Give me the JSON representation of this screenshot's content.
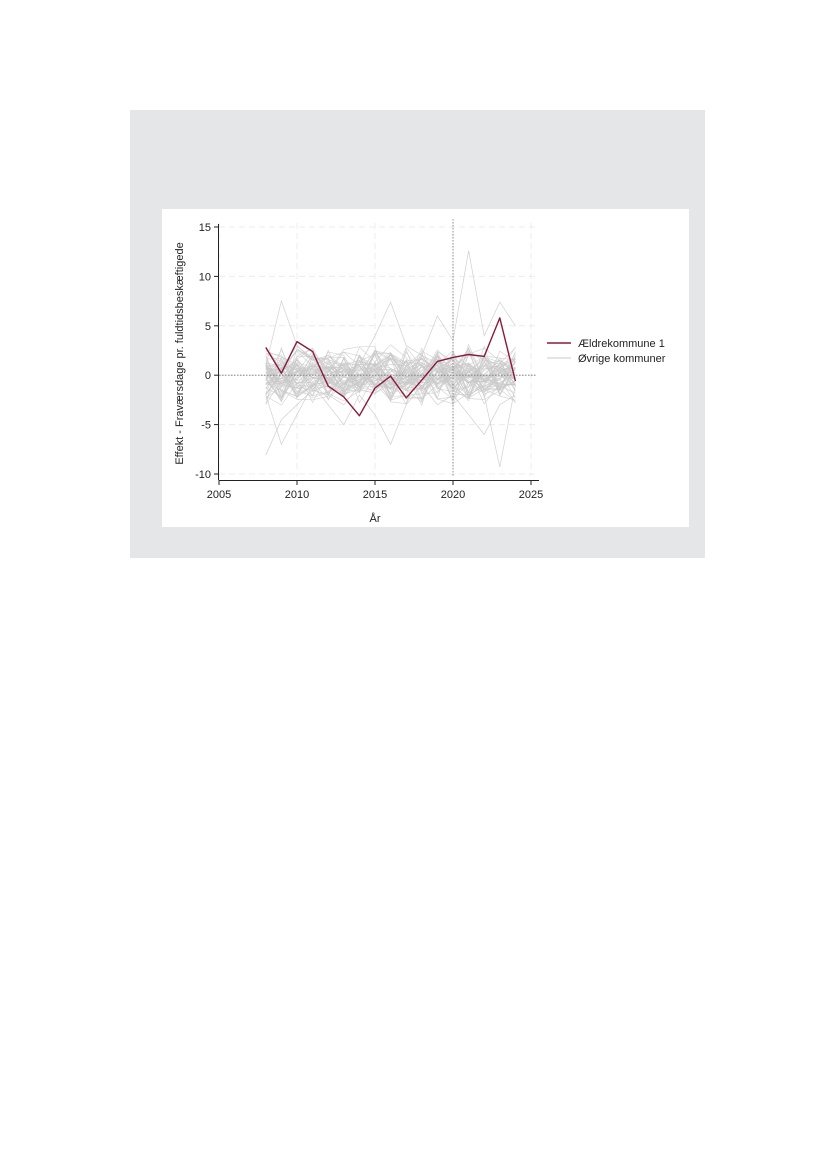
{
  "chart_data": {
    "type": "line",
    "title": "",
    "xlabel": "År",
    "ylabel": "Effekt - Fraværsdage pr. fuldtidsbeskæftigede",
    "xlim": [
      2005,
      2025
    ],
    "ylim": [
      -10,
      15
    ],
    "x_ticks": [
      2005,
      2010,
      2015,
      2020,
      2025
    ],
    "y_ticks": [
      -10,
      -5,
      0,
      5,
      10,
      15
    ],
    "grid": true,
    "reference_lines": {
      "x": 2020,
      "y": 0
    },
    "legend_position": "right",
    "x": [
      2008,
      2009,
      2010,
      2011,
      2012,
      2013,
      2014,
      2015,
      2016,
      2017,
      2018,
      2019,
      2020,
      2021,
      2022,
      2023,
      2024
    ],
    "series": [
      {
        "name": "Ældrekommune 1",
        "color": "#8b1a3a",
        "values": [
          2.8,
          0.2,
          3.4,
          2.4,
          -1.1,
          -2.2,
          -4.1,
          -1.3,
          -0.1,
          -2.3,
          -0.5,
          1.4,
          1.8,
          2.1,
          1.9,
          5.8,
          -0.6
        ]
      },
      {
        "name": "Øvrige kommuner",
        "color": "#c8c8c8",
        "count": 60,
        "note": "many grey lines fluctuating mainly between -5 and 5"
      }
    ]
  }
}
